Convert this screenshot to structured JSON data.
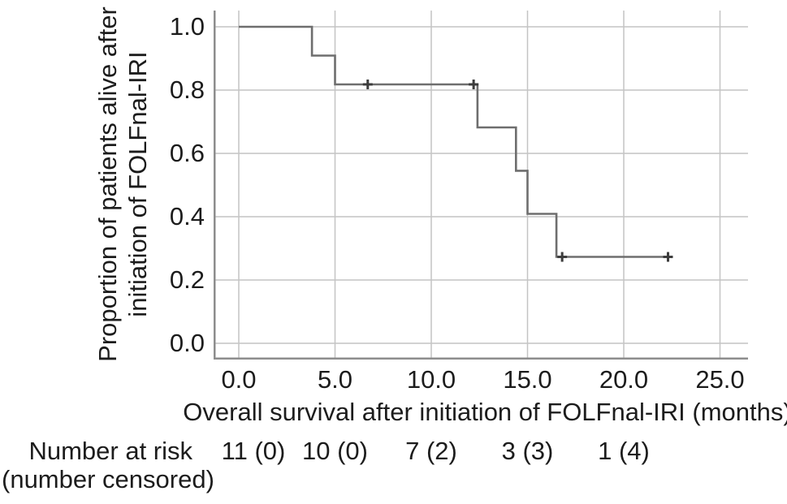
{
  "figure": {
    "y_axis_title": {
      "line1": "Proportion of patients alive after",
      "line2": "initiation of FOLFnal-IRI"
    },
    "x_axis_title": "Overall survival after initiation of FOLFnal-IRI (months)",
    "number_at_risk_label": {
      "line1": "Number at risk",
      "line2": "(number censored)"
    }
  },
  "chart_data": {
    "type": "line",
    "subtype": "kaplan_meier_step",
    "title": "",
    "xlabel": "Overall survival after initiation of FOLFnal-IRI (months)",
    "ylabel": "Proportion of patients alive after initiation of FOLFnal-IRI",
    "x_ticks": [
      0,
      5,
      10,
      15,
      20,
      25
    ],
    "x_tick_labels": [
      "0.0",
      "5.0",
      "10.0",
      "15.0",
      "20.0",
      "25.0"
    ],
    "y_ticks": [
      1.0,
      0.8,
      0.6,
      0.4,
      0.2,
      0.0
    ],
    "y_tick_labels": [
      "1.0",
      "0.8",
      "0.6",
      "0.4",
      "0.2",
      "0.0"
    ],
    "xlim": [
      -1.3,
      26.6
    ],
    "ylim": [
      -0.08,
      1.02
    ],
    "grid": true,
    "legend_position": "none",
    "series": [
      {
        "name": "Overall survival after initiation of FOLFnal-IRI",
        "step_points": [
          [
            0,
            1.0
          ],
          [
            3.8,
            1.0
          ],
          [
            3.8,
            0.909
          ],
          [
            5.0,
            0.909
          ],
          [
            5.0,
            0.818
          ],
          [
            12.4,
            0.818
          ],
          [
            12.4,
            0.682
          ],
          [
            14.4,
            0.682
          ],
          [
            14.4,
            0.545
          ],
          [
            15.0,
            0.545
          ],
          [
            15.0,
            0.409
          ],
          [
            16.5,
            0.409
          ],
          [
            16.5,
            0.273
          ],
          [
            22.3,
            0.273
          ]
        ],
        "censor_marks": [
          [
            6.7,
            0.818
          ],
          [
            12.2,
            0.818
          ],
          [
            16.8,
            0.273
          ],
          [
            22.3,
            0.273
          ]
        ]
      }
    ],
    "number_at_risk": {
      "x": [
        0,
        5,
        10,
        15,
        20
      ],
      "values": [
        "11 (0)",
        "10 (0)",
        "7 (2)",
        "3 (3)",
        "1 (4)"
      ]
    },
    "colors": {
      "curve": "#6e6e6e",
      "axis": "#8d8d8d",
      "grid": "#c4c4c4",
      "censor": "#3c3c3c",
      "text": "#1c1c1c"
    }
  }
}
